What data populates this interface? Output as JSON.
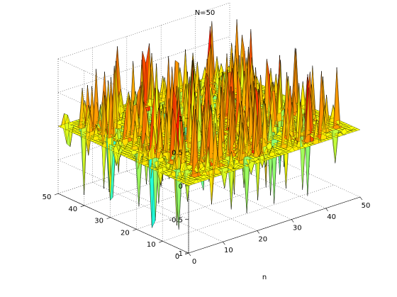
{
  "chart_data": {
    "type": "surface",
    "title": "N=50",
    "xlabel": "n",
    "ylabel": "",
    "zlabel": "",
    "x_ticks": [
      "0",
      "10",
      "20",
      "30",
      "40",
      "50"
    ],
    "y_ticks": [
      "0",
      "10",
      "20",
      "30",
      "40",
      "50"
    ],
    "z_ticks": [
      "-1",
      "-0.5",
      "0",
      "0.5",
      "1"
    ],
    "xlim": [
      0,
      50
    ],
    "ylim": [
      0,
      50
    ],
    "zlim": [
      -1,
      1
    ],
    "grid": true,
    "colormap": "jet",
    "grid_size": 50
  }
}
